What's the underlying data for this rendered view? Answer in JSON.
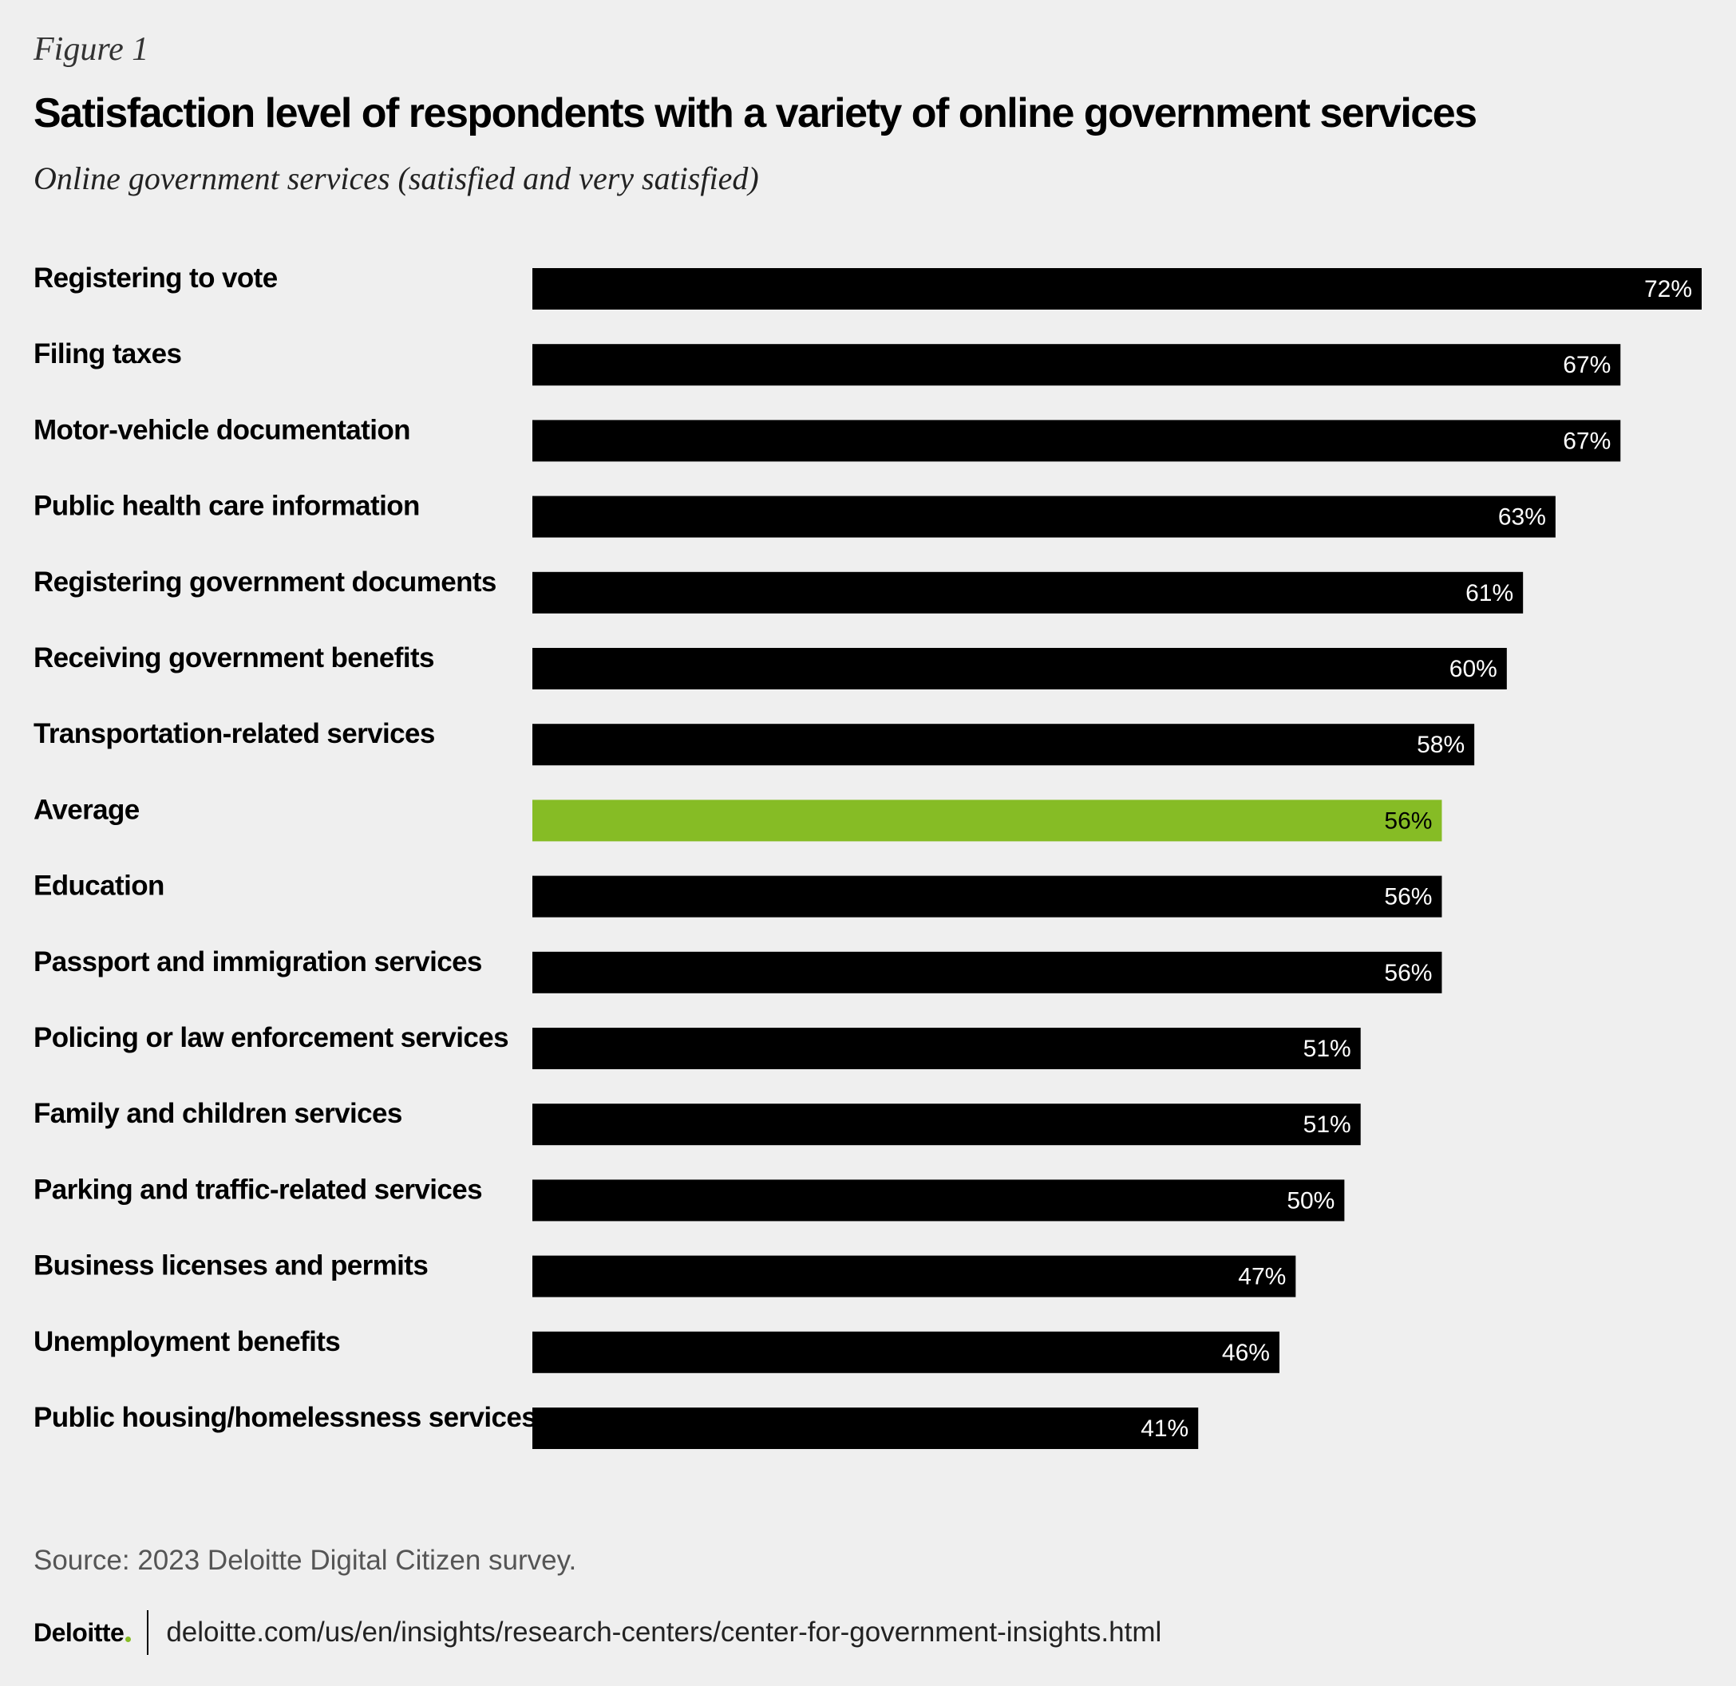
{
  "figure_label": "Figure 1",
  "colors": {
    "bar": "#000000",
    "highlight": "#86bc25",
    "background": "#efefef",
    "brand_dot": "#86bc25"
  },
  "chart_data": {
    "type": "bar",
    "orientation": "horizontal",
    "title": "Satisfaction level of respondents with a variety of online government services",
    "subtitle": "Online government services (satisfied and very satisfied)",
    "xlabel": "",
    "ylabel": "",
    "value_unit": "%",
    "highlight_category": "Average",
    "categories": [
      "Registering to vote",
      "Filing taxes",
      "Motor-vehicle documentation",
      "Public health care information",
      "Registering government documents",
      "Receiving government benefits",
      "Transportation-related services",
      "Average",
      "Education",
      "Passport and immigration services",
      "Policing or law enforcement services",
      "Family and children services",
      "Parking and traffic-related services",
      "Business licenses and permits",
      "Unemployment benefits",
      "Public housing/homelessness services"
    ],
    "values": [
      72,
      67,
      67,
      63,
      61,
      60,
      58,
      56,
      56,
      56,
      51,
      51,
      50,
      47,
      46,
      41
    ],
    "value_labels": [
      "72%",
      "67%",
      "67%",
      "63%",
      "61%",
      "60%",
      "58%",
      "56%",
      "56%",
      "56%",
      "51%",
      "51%",
      "50%",
      "47%",
      "46%",
      "41%"
    ],
    "xlim": [
      0,
      72
    ]
  },
  "source": "Source: 2023 Deloitte Digital Citizen survey.",
  "footer": {
    "brand": "Deloitte",
    "url": "deloitte.com/us/en/insights/research-centers/center-for-government-insights.html"
  }
}
